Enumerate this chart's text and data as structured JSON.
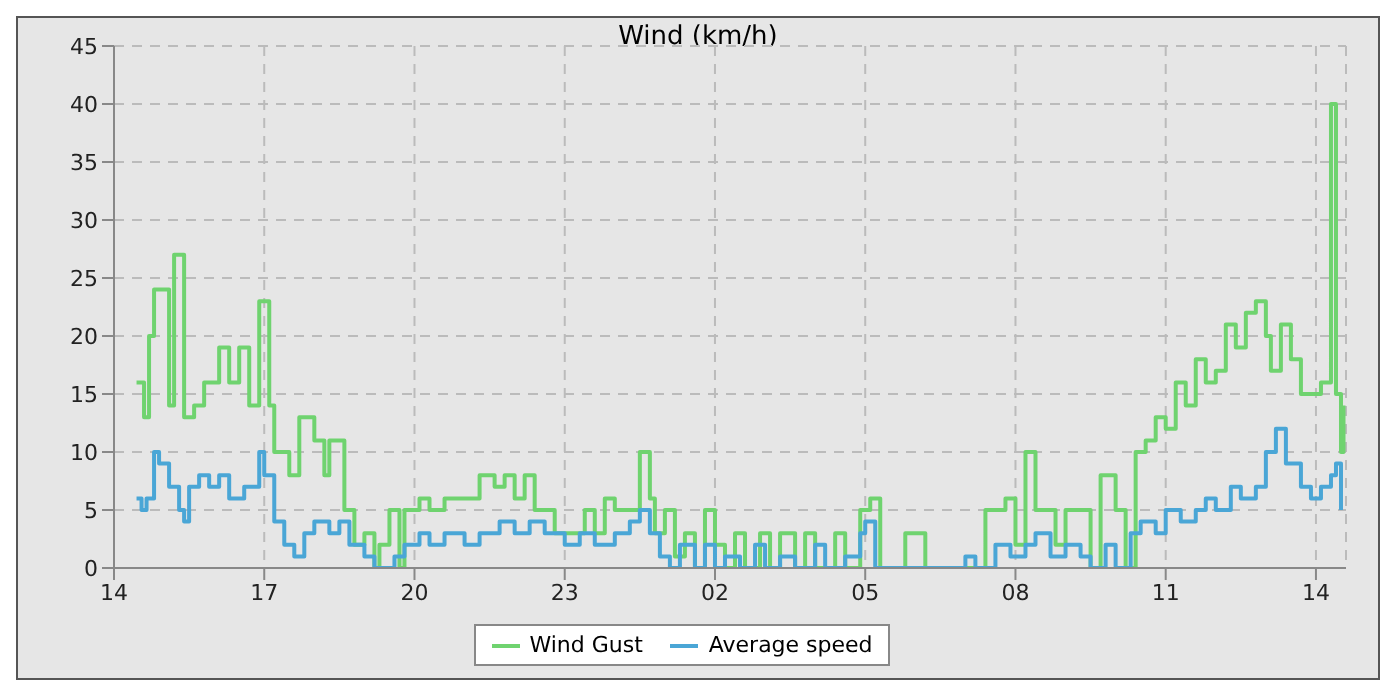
{
  "chart_data": {
    "type": "step",
    "title": "Wind (km/h)",
    "xlim": [
      "--01-01T14:00",
      "--01-02T14:36"
    ],
    "xticks": [
      {
        "value": "--01-01T14:00",
        "label": "14"
      },
      {
        "value": "--01-01T17:00",
        "label": "17"
      },
      {
        "value": "--01-01T20:00",
        "label": "20"
      },
      {
        "value": "--01-01T23:00",
        "label": "23"
      },
      {
        "value": "--01-02T02:00",
        "label": "02"
      },
      {
        "value": "--01-02T05:00",
        "label": "05"
      },
      {
        "value": "--01-02T08:00",
        "label": "08"
      },
      {
        "value": "--01-02T11:00",
        "label": "11"
      },
      {
        "value": "--01-02T14:00",
        "label": "14"
      }
    ],
    "ylim": [
      0,
      45
    ],
    "yticks": [
      0,
      5,
      10,
      15,
      20,
      25,
      30,
      35,
      40,
      45
    ],
    "grid": true,
    "legend": "bottom",
    "marker": "none",
    "line_style": "solid",
    "series": [
      {
        "name": "Wind Gust",
        "color": "#6fd36f",
        "x": [
          "--01-01T14:27",
          "--01-01T14:36",
          "--01-01T14:42",
          "--01-01T14:48",
          "--01-01T15:06",
          "--01-01T15:12",
          "--01-01T15:24",
          "--01-01T15:36",
          "--01-01T15:48",
          "--01-01T16:06",
          "--01-01T16:18",
          "--01-01T16:30",
          "--01-01T16:42",
          "--01-01T16:54",
          "--01-01T17:06",
          "--01-01T17:12",
          "--01-01T17:30",
          "--01-01T17:42",
          "--01-01T18:00",
          "--01-01T18:12",
          "--01-01T18:18",
          "--01-01T18:36",
          "--01-01T18:48",
          "--01-01T19:00",
          "--01-01T19:12",
          "--01-01T19:18",
          "--01-01T19:30",
          "--01-01T19:42",
          "--01-01T19:48",
          "--01-01T20:06",
          "--01-01T20:18",
          "--01-01T20:36",
          "--01-01T21:18",
          "--01-01T21:36",
          "--01-01T21:48",
          "--01-01T22:00",
          "--01-01T22:12",
          "--01-01T22:24",
          "--01-01T22:48",
          "--01-01T23:00",
          "--01-01T23:24",
          "--01-01T23:36",
          "--01-01T23:48",
          "--01-02T00:00",
          "--01-02T00:18",
          "--01-02T00:30",
          "--01-02T00:42",
          "--01-02T00:48",
          "--01-02T01:00",
          "--01-02T01:12",
          "--01-02T01:24",
          "--01-02T01:36",
          "--01-02T01:48",
          "--01-02T02:00",
          "--01-02T02:12",
          "--01-02T02:24",
          "--01-02T02:36",
          "--01-02T02:54",
          "--01-02T03:06",
          "--01-02T03:18",
          "--01-02T03:36",
          "--01-02T03:48",
          "--01-02T04:00",
          "--01-02T04:24",
          "--01-02T04:36",
          "--01-02T04:54",
          "--01-02T05:06",
          "--01-02T05:18",
          "--01-02T05:48",
          "--01-02T06:12",
          "--01-02T07:24",
          "--01-02T07:48",
          "--01-02T08:00",
          "--01-02T08:12",
          "--01-02T08:24",
          "--01-02T08:48",
          "--01-02T09:00",
          "--01-02T09:30",
          "--01-02T09:42",
          "--01-02T10:00",
          "--01-02T10:12",
          "--01-02T10:24",
          "--01-02T10:36",
          "--01-02T10:48",
          "--01-02T11:00",
          "--01-02T11:12",
          "--01-02T11:24",
          "--01-02T11:36",
          "--01-02T11:48",
          "--01-02T12:00",
          "--01-02T12:12",
          "--01-02T12:24",
          "--01-02T12:36",
          "--01-02T12:48",
          "--01-02T13:00",
          "--01-02T13:06",
          "--01-02T13:18",
          "--01-02T13:30",
          "--01-02T13:42",
          "--01-02T14:00",
          "--01-02T14:06",
          "--01-02T14:18",
          "--01-02T14:24",
          "--01-02T14:30",
          "--01-02T14:33"
        ],
        "values": [
          16,
          13,
          20,
          24,
          14,
          27,
          13,
          14,
          16,
          19,
          16,
          19,
          14,
          23,
          14,
          10,
          8,
          13,
          11,
          8,
          11,
          5,
          2,
          3,
          0,
          2,
          5,
          0,
          5,
          6,
          5,
          6,
          8,
          7,
          8,
          6,
          8,
          5,
          3,
          3,
          5,
          3,
          6,
          5,
          5,
          10,
          6,
          3,
          5,
          1,
          3,
          0,
          5,
          2,
          0,
          3,
          0,
          3,
          0,
          3,
          0,
          3,
          0,
          3,
          0,
          5,
          6,
          0,
          3,
          0,
          5,
          6,
          2,
          10,
          5,
          2,
          5,
          0,
          8,
          5,
          0,
          10,
          11,
          13,
          12,
          16,
          14,
          18,
          16,
          17,
          21,
          19,
          22,
          23,
          20,
          17,
          21,
          18,
          15,
          15,
          16,
          40,
          15,
          10,
          14
        ]
      },
      {
        "name": "Average speed",
        "color": "#4aa6d6",
        "x": [
          "--01-01T14:27",
          "--01-01T14:33",
          "--01-01T14:39",
          "--01-01T14:48",
          "--01-01T14:54",
          "--01-01T15:06",
          "--01-01T15:18",
          "--01-01T15:24",
          "--01-01T15:30",
          "--01-01T15:42",
          "--01-01T15:54",
          "--01-01T16:06",
          "--01-01T16:18",
          "--01-01T16:36",
          "--01-01T16:54",
          "--01-01T17:00",
          "--01-01T17:12",
          "--01-01T17:24",
          "--01-01T17:36",
          "--01-01T17:48",
          "--01-01T18:00",
          "--01-01T18:18",
          "--01-01T18:30",
          "--01-01T18:42",
          "--01-01T19:00",
          "--01-01T19:12",
          "--01-01T19:36",
          "--01-01T19:48",
          "--01-01T20:06",
          "--01-01T20:18",
          "--01-01T20:36",
          "--01-01T21:00",
          "--01-01T21:18",
          "--01-01T21:42",
          "--01-01T22:00",
          "--01-01T22:18",
          "--01-01T22:36",
          "--01-01T23:00",
          "--01-01T23:18",
          "--01-01T23:36",
          "--01-02T00:00",
          "--01-02T00:18",
          "--01-02T00:30",
          "--01-02T00:42",
          "--01-02T00:54",
          "--01-02T01:06",
          "--01-02T01:18",
          "--01-02T01:36",
          "--01-02T01:48",
          "--01-02T02:00",
          "--01-02T02:12",
          "--01-02T02:30",
          "--01-02T02:48",
          "--01-02T03:00",
          "--01-02T03:18",
          "--01-02T03:36",
          "--01-02T04:00",
          "--01-02T04:12",
          "--01-02T04:36",
          "--01-02T04:54",
          "--01-02T05:00",
          "--01-02T05:12",
          "--01-02T07:00",
          "--01-02T07:12",
          "--01-02T07:36",
          "--01-02T07:54",
          "--01-02T08:12",
          "--01-02T08:24",
          "--01-02T08:42",
          "--01-02T09:00",
          "--01-02T09:18",
          "--01-02T09:30",
          "--01-02T09:48",
          "--01-02T10:00",
          "--01-02T10:18",
          "--01-02T10:30",
          "--01-02T10:48",
          "--01-02T11:00",
          "--01-02T11:18",
          "--01-02T11:36",
          "--01-02T11:48",
          "--01-02T12:00",
          "--01-02T12:18",
          "--01-02T12:30",
          "--01-02T12:48",
          "--01-02T13:00",
          "--01-02T13:12",
          "--01-02T13:24",
          "--01-02T13:42",
          "--01-02T13:54",
          "--01-02T14:06",
          "--01-02T14:18",
          "--01-02T14:24",
          "--01-02T14:30"
        ],
        "values": [
          6,
          5,
          6,
          10,
          9,
          7,
          5,
          4,
          7,
          8,
          7,
          8,
          6,
          7,
          10,
          8,
          4,
          2,
          1,
          3,
          4,
          3,
          4,
          2,
          1,
          0,
          1,
          2,
          3,
          2,
          3,
          2,
          3,
          4,
          3,
          4,
          3,
          2,
          3,
          2,
          3,
          4,
          5,
          3,
          1,
          0,
          2,
          0,
          2,
          0,
          1,
          0,
          2,
          0,
          1,
          0,
          2,
          0,
          1,
          3,
          4,
          0,
          1,
          0,
          2,
          1,
          2,
          3,
          1,
          2,
          1,
          0,
          2,
          0,
          3,
          4,
          3,
          5,
          4,
          5,
          6,
          5,
          7,
          6,
          7,
          10,
          12,
          9,
          7,
          6,
          7,
          8,
          9,
          5
        ]
      }
    ]
  }
}
